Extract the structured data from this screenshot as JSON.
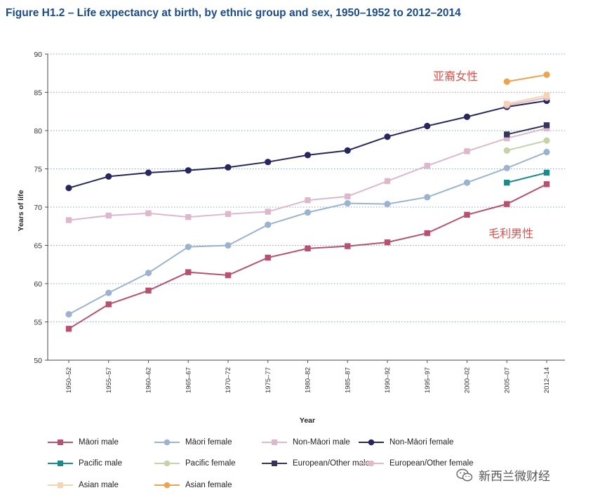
{
  "title": "Figure H1.2 – Life expectancy at birth, by ethnic group and sex, 1950–1952 to 2012–2014",
  "annotations": {
    "asian_female_cn": "亚裔女性",
    "maori_male_cn": "毛利男性"
  },
  "watermark": "新西兰微财经",
  "chart_data": {
    "type": "line",
    "title": "Figure H1.2 – Life expectancy at birth, by ethnic group and sex, 1950–1952 to 2012–2014",
    "xlabel": "Year",
    "ylabel": "Years of life",
    "ylim": [
      50,
      90
    ],
    "yticks": [
      "50",
      "55",
      "60",
      "65",
      "70",
      "75",
      "80",
      "85",
      "90"
    ],
    "grid": "horizontal dotted",
    "legend_position": "bottom",
    "categories": [
      "1950–52",
      "1955–57",
      "1960–62",
      "1965–67",
      "1970–72",
      "1975–77",
      "1980–82",
      "1985–87",
      "1990–92",
      "1995–97",
      "2000–02",
      "2005–07",
      "2012–14"
    ],
    "series": [
      {
        "name": "Māori male",
        "color": "#b85170",
        "marker": "square",
        "values": [
          54.1,
          57.3,
          59.1,
          61.5,
          61.1,
          63.4,
          64.6,
          64.9,
          65.4,
          66.6,
          69.0,
          70.4,
          73.0
        ]
      },
      {
        "name": "Māori female",
        "color": "#9cb3cf",
        "marker": "circle",
        "values": [
          56.0,
          58.8,
          61.4,
          64.8,
          65.0,
          67.7,
          69.3,
          70.5,
          70.4,
          71.3,
          73.2,
          75.1,
          77.2
        ]
      },
      {
        "name": "Non-Māori male",
        "color": "#ddb8cc",
        "marker": "square",
        "values": [
          68.3,
          68.9,
          69.2,
          68.7,
          69.1,
          69.4,
          70.9,
          71.4,
          73.4,
          75.4,
          77.3,
          79.0,
          80.3
        ]
      },
      {
        "name": "Non-Māori female",
        "color": "#27275e",
        "marker": "circle",
        "values": [
          72.5,
          74.0,
          74.5,
          74.8,
          75.2,
          75.9,
          76.8,
          77.4,
          79.2,
          80.6,
          81.8,
          83.1,
          83.9
        ]
      },
      {
        "name": "Pacific male",
        "color": "#1a8a8a",
        "marker": "square",
        "values": [
          null,
          null,
          null,
          null,
          null,
          null,
          null,
          null,
          null,
          null,
          null,
          73.2,
          74.5
        ]
      },
      {
        "name": "Pacific female",
        "color": "#c4d4a8",
        "marker": "circle",
        "values": [
          null,
          null,
          null,
          null,
          null,
          null,
          null,
          null,
          null,
          null,
          null,
          77.4,
          78.7
        ]
      },
      {
        "name": "European/Other male",
        "color": "#34345c",
        "marker": "square",
        "values": [
          null,
          null,
          null,
          null,
          null,
          null,
          null,
          null,
          null,
          null,
          null,
          79.5,
          80.7
        ]
      },
      {
        "name": "European/Other female",
        "color": "#e3b9c8",
        "marker": "circle",
        "values": [
          null,
          null,
          null,
          null,
          null,
          null,
          null,
          null,
          null,
          null,
          null,
          83.3,
          84.3
        ]
      },
      {
        "name": "Asian male",
        "color": "#f6d3b3",
        "marker": "square",
        "values": [
          null,
          null,
          null,
          null,
          null,
          null,
          null,
          null,
          null,
          null,
          null,
          83.5,
          84.6
        ]
      },
      {
        "name": "Asian female",
        "color": "#eea352",
        "marker": "circle",
        "values": [
          null,
          null,
          null,
          null,
          null,
          null,
          null,
          null,
          null,
          null,
          null,
          86.4,
          87.3
        ]
      }
    ]
  }
}
